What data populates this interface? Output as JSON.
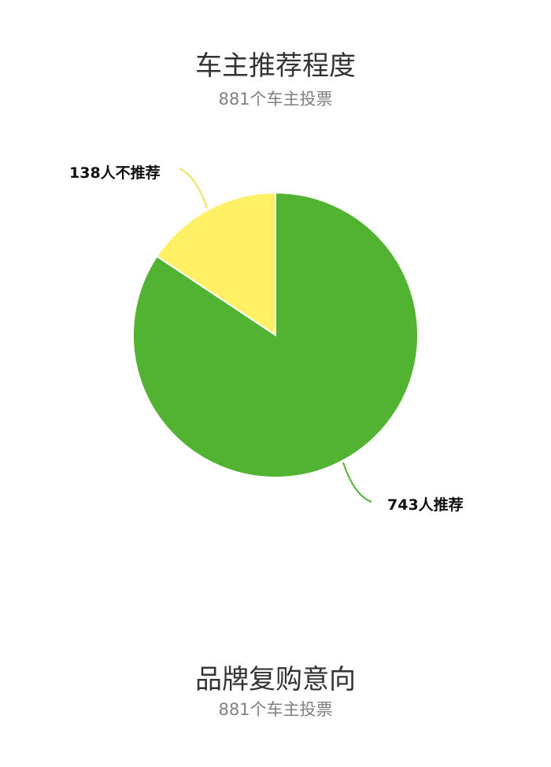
{
  "section1": {
    "title": "车主推荐程度",
    "subtitle": "881个车主投票"
  },
  "section2": {
    "title": "品牌复购意向",
    "subtitle": "881个车主投票"
  },
  "chart_data": {
    "type": "pie",
    "slices": [
      {
        "label": "138人不推荐",
        "value": 138,
        "color": "#fff066"
      },
      {
        "label": "743人推荐",
        "value": 743,
        "color": "#52b332"
      }
    ],
    "start": "top",
    "direction": "counterclockwise"
  }
}
